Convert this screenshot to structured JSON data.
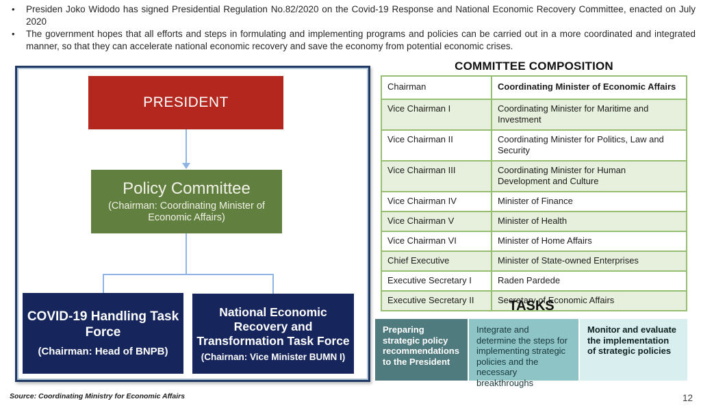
{
  "slide": {
    "bullets": [
      "Presiden Joko Widodo has signed Presidential Regulation No.82/2020 on the Covid-19 Response and National Economic Recovery Committee, enacted on July 2020",
      "The government hopes that all efforts and steps in formulating and implementing programs and policies can be carried out in a more coordinated and integrated manner, so that they can accelerate national economic recovery and save the economy from potential economic crises."
    ],
    "source": "Source: Coordinating Ministry for Economic Affairs",
    "page_number": "12"
  },
  "org_chart": {
    "president": {
      "label": "PRESIDENT",
      "color": "#B3271E"
    },
    "policy_committee": {
      "title": "Policy Committee",
      "subtitle": "(Chairman: Coordinating Minister of Economic Affairs)",
      "color": "#61803F"
    },
    "task_forces": [
      {
        "title": "COVID-19 Handling Task Force",
        "subtitle": "(Chairman: Head of BNPB)",
        "color": "#16265C"
      },
      {
        "title": "National Economic Recovery and Transformation Task Force",
        "subtitle": "(Chairnan: Vice Minister BUMN I)",
        "color": "#16265C"
      }
    ],
    "connector_color": "#8DB4E2",
    "frame_color": "#1F3864"
  },
  "committee": {
    "title": "COMMITTEE COMPOSITION",
    "border_color": "#95BE70",
    "shaded_row_color": "#E7F0DC",
    "rows": [
      {
        "role": "Chairman",
        "holder": "Coordinating Minister of Economic Affairs"
      },
      {
        "role": "Vice Chairman I",
        "holder": "Coordinating Minister for Maritime and Investment"
      },
      {
        "role": "Vice Chairman II",
        "holder": "Coordinating Minister for Politics, Law and Security"
      },
      {
        "role": "Vice Chairman III",
        "holder": "Coordinating Minister for Human Development and Culture"
      },
      {
        "role": "Vice Chairman IV",
        "holder": "Minister of Finance"
      },
      {
        "role": "Vice Chairman V",
        "holder": "Minister of Health"
      },
      {
        "role": "Vice Chairman VI",
        "holder": "Minister of Home Affairs"
      },
      {
        "role": "Chief Executive",
        "holder": "Minister of State-owned Enterprises"
      },
      {
        "role": "Executive Secretary I",
        "holder": "Raden Pardede"
      },
      {
        "role": "Executive Secretary II",
        "holder": "Secretary of Economic Affairs"
      }
    ]
  },
  "tasks": {
    "title": "TASKS",
    "items": [
      {
        "text": "Preparing strategic policy recommendations to the President",
        "bg": "#4F7A7E"
      },
      {
        "text": "Integrate and determine the steps for implementing strategic policies and the necessary breakthroughs",
        "bg": "#8FC4C6"
      },
      {
        "text": "Monitor and evaluate the implementation of strategic policies",
        "bg": "#D9EFEF"
      }
    ]
  }
}
